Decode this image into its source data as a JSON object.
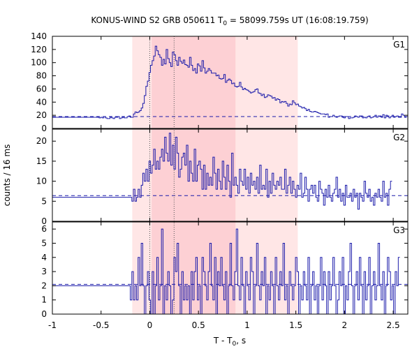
{
  "chart_data": {
    "type": "line",
    "title": {
      "main": "KONUS-WIND S2 GRB 050611 T",
      "sub": "0",
      "rest": " = 58099.759s UT (16:08:19.759)"
    },
    "xlabel": {
      "main": "T - T",
      "sub": "0",
      "rest": ", s"
    },
    "ylabel": "counts / 16 ms",
    "xlim": [
      -1,
      2.65
    ],
    "x_ticks": [
      -1,
      -0.5,
      0,
      0.5,
      1,
      1.5,
      2,
      2.5
    ],
    "x_tick_labels": [
      "-1",
      "-0.5",
      "0",
      "0.5",
      "1",
      "1.5",
      "2",
      "2.5"
    ],
    "shaded_intervals": [
      {
        "x": [
          -0.18,
          1.52
        ],
        "color": "#ffe6e6"
      },
      {
        "x": [
          0.02,
          0.88
        ],
        "color": "#fdd0d4"
      }
    ],
    "vertical_markers": [
      0,
      0.25
    ],
    "line_color": "#1a1aaa",
    "panels": [
      {
        "label": "G1",
        "ylim": [
          0,
          140
        ],
        "y_ticks": [
          0,
          20,
          40,
          60,
          80,
          100,
          120,
          140
        ],
        "background": 18,
        "x0": -1,
        "dt": 0.016,
        "values": [
          17,
          17,
          17,
          17,
          17,
          17,
          17,
          17,
          17,
          17,
          17,
          17,
          17,
          17,
          17,
          17,
          17,
          17,
          17,
          17,
          17,
          17,
          17,
          17,
          17,
          17,
          17,
          17,
          17,
          17,
          16,
          17,
          16,
          18,
          16,
          15,
          15,
          17,
          16,
          15,
          17,
          17,
          18,
          15,
          16,
          17,
          16,
          16,
          18,
          19,
          17,
          17,
          22,
          25,
          24,
          25,
          27,
          31,
          38,
          50,
          64,
          72,
          85,
          96,
          103,
          110,
          125,
          118,
          112,
          108,
          96,
          105,
          98,
          120,
          106,
          100,
          94,
          116,
          112,
          103,
          96,
          108,
          102,
          99,
          104,
          97,
          96,
          93,
          108,
          96,
          88,
          91,
          84,
          98,
          95,
          87,
          103,
          92,
          84,
          87,
          91,
          88,
          84,
          84,
          84,
          80,
          81,
          76,
          75,
          76,
          82,
          70,
          73,
          75,
          73,
          68,
          69,
          64,
          63,
          64,
          70,
          63,
          59,
          61,
          59,
          58,
          56,
          54,
          55,
          56,
          59,
          60,
          54,
          53,
          50,
          52,
          47,
          48,
          51,
          50,
          49,
          46,
          47,
          43,
          45,
          44,
          39,
          41,
          40,
          41,
          38,
          34,
          37,
          36,
          42,
          39,
          36,
          37,
          34,
          33,
          31,
          32,
          30,
          27,
          29,
          26,
          25,
          25,
          26,
          25,
          24,
          23,
          22,
          22,
          22,
          21,
          22,
          17,
          18,
          18,
          20,
          18,
          17,
          18,
          19,
          19,
          17,
          16,
          18,
          18,
          15,
          16,
          16,
          17,
          19,
          18,
          17,
          19,
          19,
          16,
          17,
          16,
          18,
          19,
          16,
          17,
          18,
          20,
          17,
          19,
          19,
          17,
          21,
          16,
          20,
          19,
          16,
          18,
          20,
          17,
          18,
          19,
          17,
          17,
          22,
          20,
          17,
          18
        ]
      },
      {
        "label": "G2",
        "ylim": [
          0,
          23
        ],
        "y_ticks": [
          0,
          5,
          10,
          15,
          20
        ],
        "background": 6.4,
        "x0": -1,
        "dt": 0.016,
        "values": [
          6,
          6,
          6,
          6,
          6,
          6,
          6,
          6,
          6,
          6,
          6,
          6,
          6,
          6,
          6,
          6,
          6,
          6,
          6,
          6,
          6,
          6,
          6,
          6,
          6,
          6,
          6,
          6,
          6,
          6,
          6,
          6,
          6,
          6,
          6,
          6,
          6,
          6,
          6,
          6,
          6,
          6,
          6,
          6,
          6,
          6,
          6,
          6,
          6,
          6,
          6,
          5,
          8,
          5,
          6,
          8,
          6,
          9,
          12,
          10,
          13,
          10,
          15,
          12,
          14,
          18,
          13,
          15,
          13,
          16,
          18,
          15,
          21,
          17,
          15,
          22,
          14,
          19,
          13,
          21,
          17,
          11,
          13,
          16,
          17,
          14,
          19,
          10,
          15,
          12,
          10,
          18,
          10,
          14,
          15,
          13,
          8,
          14,
          8,
          12,
          9,
          11,
          9,
          16,
          12,
          8,
          13,
          10,
          8,
          15,
          11,
          8,
          14,
          10,
          6,
          17,
          9,
          11,
          9,
          7,
          13,
          10,
          9,
          13,
          8,
          11,
          7,
          12,
          9,
          10,
          8,
          11,
          7,
          14,
          8,
          9,
          8,
          13,
          6,
          10,
          7,
          12,
          9,
          8,
          10,
          9,
          11,
          8,
          8,
          13,
          7,
          9,
          11,
          7,
          10,
          8,
          6,
          9,
          8,
          12,
          6,
          7,
          11,
          8,
          5,
          8,
          9,
          7,
          9,
          6,
          5,
          10,
          8,
          7,
          4,
          8,
          6,
          9,
          6,
          5,
          7,
          8,
          11,
          6,
          8,
          5,
          7,
          4,
          9,
          6,
          6,
          7,
          5,
          8,
          6,
          7,
          3,
          7,
          6,
          5,
          10,
          7,
          6,
          8,
          5,
          6,
          4,
          7,
          6,
          8,
          6,
          5,
          10,
          6,
          7,
          4,
          8,
          10
        ]
      },
      {
        "label": "G3",
        "ylim": [
          0,
          6.5
        ],
        "y_ticks": [
          0,
          1,
          2,
          3,
          4,
          5,
          6
        ],
        "background": 2.1,
        "x0": -1,
        "dt": 0.016,
        "values": [
          2,
          2,
          2,
          2,
          2,
          2,
          2,
          2,
          2,
          2,
          2,
          2,
          2,
          2,
          2,
          2,
          2,
          2,
          2,
          2,
          2,
          2,
          2,
          2,
          2,
          2,
          2,
          2,
          2,
          2,
          2,
          2,
          2,
          2,
          2,
          2,
          2,
          2,
          2,
          2,
          2,
          2,
          2,
          2,
          2,
          2,
          2,
          2,
          2,
          2,
          1,
          3,
          1,
          2,
          1,
          4,
          2,
          5,
          2,
          0,
          2,
          3,
          1,
          0,
          3,
          0,
          2,
          4,
          1,
          2,
          6,
          0,
          2,
          1,
          3,
          2,
          0,
          1,
          4,
          3,
          5,
          2,
          0,
          3,
          1,
          2,
          1,
          2,
          0,
          3,
          1,
          3,
          4,
          1,
          2,
          0,
          4,
          3,
          2,
          1,
          3,
          5,
          2,
          1,
          4,
          0,
          3,
          2,
          4,
          2,
          1,
          3,
          0,
          2,
          5,
          2,
          1,
          3,
          6,
          2,
          1,
          4,
          2,
          0,
          3,
          2,
          1,
          4,
          3,
          0,
          2,
          5,
          2,
          1,
          3,
          2,
          4,
          0,
          2,
          1,
          3,
          2,
          0,
          4,
          2,
          1,
          3,
          2,
          5,
          1,
          2,
          0,
          3,
          2,
          1,
          2,
          4,
          3,
          0,
          2,
          1,
          3,
          2,
          1,
          4,
          0,
          2,
          3,
          1,
          2,
          0,
          2,
          4,
          1,
          3,
          2,
          0,
          3,
          1,
          2,
          4,
          2,
          0,
          1,
          3,
          2,
          4,
          0,
          2,
          1,
          3,
          5,
          2,
          0,
          2,
          3,
          1,
          4,
          2,
          0,
          3,
          1,
          2,
          4,
          0,
          2,
          3,
          1,
          2,
          5,
          2,
          1,
          3,
          0,
          2,
          4,
          3,
          1,
          2,
          0,
          3,
          2,
          4
        ]
      }
    ]
  }
}
